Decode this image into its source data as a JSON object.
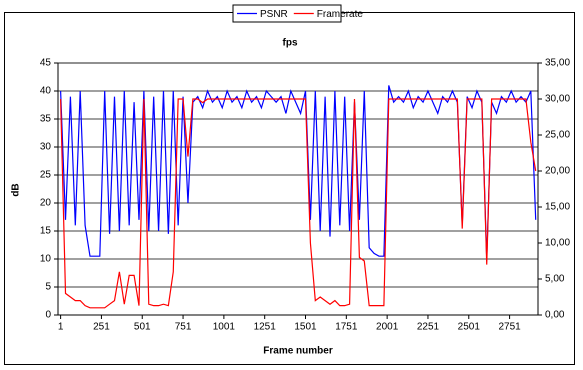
{
  "chart_data": {
    "type": "line",
    "title": "fps",
    "x_label": "Frame number",
    "y_label": "dB",
    "x": [
      1,
      31,
      61,
      91,
      121,
      151,
      181,
      211,
      241,
      271,
      301,
      331,
      361,
      391,
      421,
      451,
      481,
      511,
      541,
      571,
      601,
      631,
      661,
      691,
      721,
      751,
      781,
      811,
      841,
      871,
      901,
      931,
      961,
      991,
      1021,
      1051,
      1081,
      1111,
      1141,
      1171,
      1201,
      1231,
      1261,
      1291,
      1321,
      1351,
      1381,
      1411,
      1441,
      1471,
      1501,
      1531,
      1561,
      1591,
      1621,
      1651,
      1681,
      1711,
      1741,
      1771,
      1801,
      1831,
      1861,
      1891,
      1921,
      1951,
      1981,
      2011,
      2041,
      2071,
      2101,
      2131,
      2161,
      2191,
      2221,
      2251,
      2281,
      2311,
      2341,
      2371,
      2401,
      2431,
      2461,
      2491,
      2521,
      2551,
      2581,
      2611,
      2641,
      2671,
      2701,
      2731,
      2761,
      2791,
      2821,
      2851,
      2881,
      2911
    ],
    "series": [
      {
        "name": "PSNR",
        "color": "#0000ff",
        "values": [
          40,
          17,
          39,
          16,
          40,
          16,
          10.5,
          10.5,
          10.5,
          40,
          14.5,
          39,
          15,
          40,
          16,
          38,
          17,
          40,
          15,
          39,
          15,
          40,
          14.5,
          40,
          16,
          39,
          20,
          38,
          39,
          37,
          40,
          38,
          39,
          37,
          40,
          38,
          39,
          37,
          40,
          38,
          39,
          37,
          40,
          39,
          38,
          39,
          36,
          40,
          38,
          36,
          40,
          17,
          40,
          15,
          39,
          14,
          40,
          16,
          39,
          15,
          38,
          17,
          40,
          12,
          11,
          10.5,
          10.5,
          41,
          38,
          39,
          38,
          40,
          37,
          39,
          38,
          40,
          38,
          36,
          39,
          38,
          40,
          38,
          16,
          39,
          37,
          40,
          38,
          10,
          38,
          36,
          39,
          38,
          40,
          38,
          39,
          38,
          40,
          17
        ]
      },
      {
        "name": "Framerate",
        "color": "#ff0000",
        "axis": "y2",
        "values": [
          30,
          3,
          2.5,
          2,
          2,
          1.3,
          1,
          1,
          1,
          1,
          1.5,
          2,
          6,
          1.5,
          5.5,
          5.5,
          1.3,
          30,
          1.5,
          1.3,
          1.3,
          1.5,
          1.3,
          6,
          30,
          30,
          22,
          30,
          30,
          29.5,
          30,
          30,
          30,
          30,
          30,
          30,
          30,
          30,
          30,
          30,
          30,
          30,
          30,
          30,
          30,
          30,
          30,
          30,
          30,
          30,
          30,
          10,
          2,
          2.5,
          2,
          1.5,
          2,
          1.3,
          1.3,
          1.5,
          30,
          8,
          7.5,
          1.3,
          1.3,
          1.3,
          1.3,
          30,
          30,
          30,
          30,
          30,
          30,
          30,
          30,
          30,
          30,
          30,
          30,
          30,
          30,
          30,
          12,
          30,
          30,
          30,
          30,
          7,
          30,
          30,
          30,
          30,
          30,
          30,
          30,
          30,
          24,
          20
        ]
      }
    ],
    "xlim": [
      -15,
      2925
    ],
    "xticks": [
      1,
      251,
      501,
      751,
      1001,
      1251,
      1501,
      1751,
      2001,
      2251,
      2501,
      2751
    ],
    "ylim": [
      0,
      45
    ],
    "yticks": [
      0,
      5,
      10,
      15,
      20,
      25,
      30,
      35,
      40,
      45
    ],
    "y2lim": [
      0,
      35
    ],
    "y2ticks": [
      {
        "value": 0,
        "label": "0,00"
      },
      {
        "value": 5,
        "label": "5,00"
      },
      {
        "value": 10,
        "label": "10,00"
      },
      {
        "value": 15,
        "label": "15,00"
      },
      {
        "value": 20,
        "label": "20,00"
      },
      {
        "value": 25,
        "label": "25,00"
      },
      {
        "value": 30,
        "label": "30,00"
      },
      {
        "value": 35,
        "label": "35,00"
      }
    ],
    "grid": true,
    "legend": "top"
  }
}
